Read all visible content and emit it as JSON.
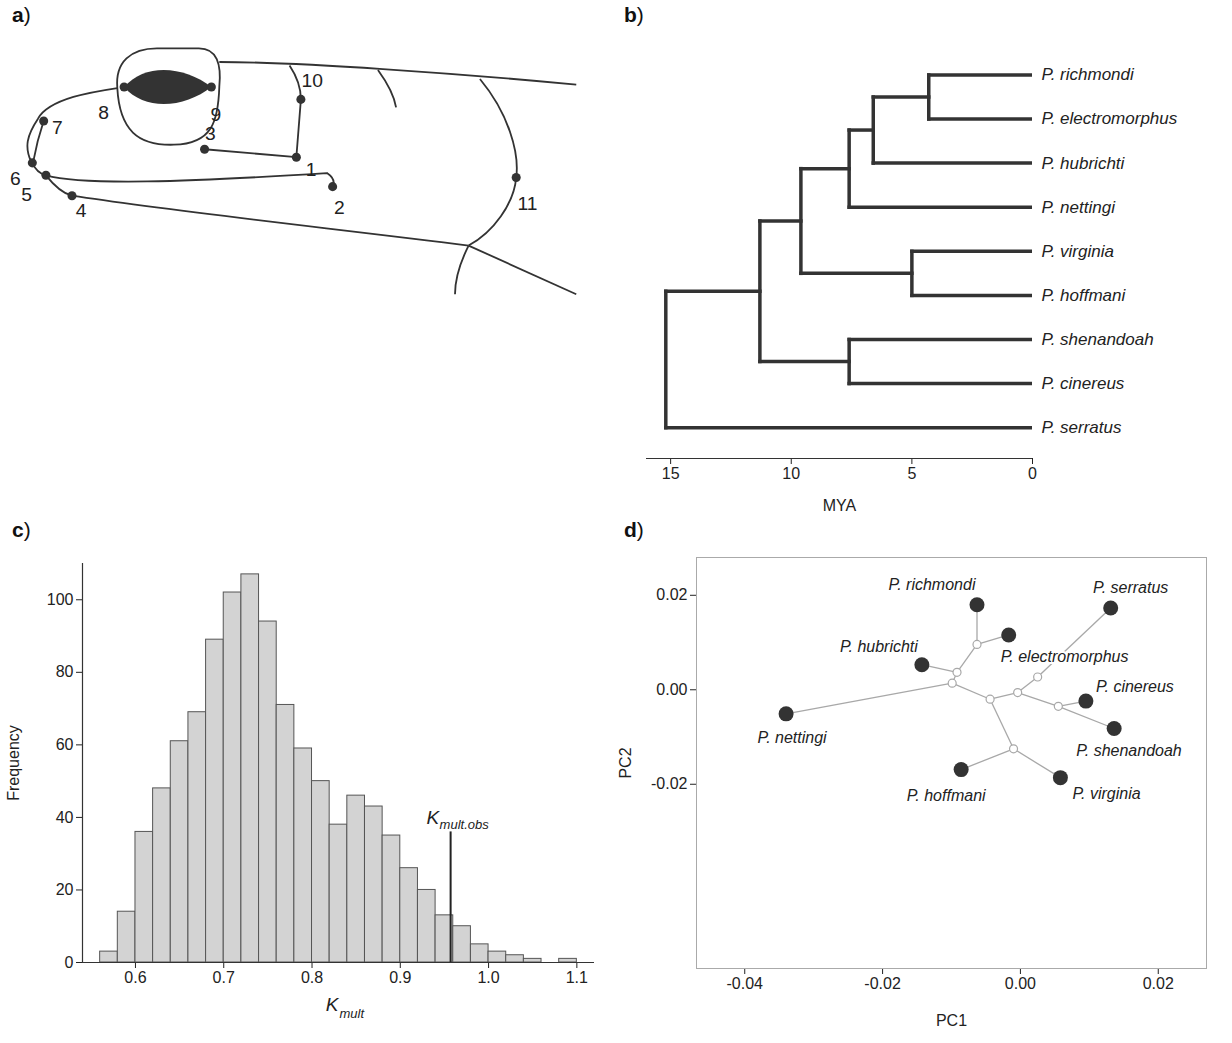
{
  "diagram": {
    "panel": "a)",
    "landmarks": [
      "1",
      "2",
      "3",
      "4",
      "5",
      "6",
      "7",
      "8",
      "9",
      "10",
      "11"
    ]
  },
  "chart_data": [
    {
      "panel": "b)",
      "type": "tree",
      "color": "#333333",
      "xlabel": "MYA",
      "xlim": [
        16,
        0
      ],
      "xticks": [
        15,
        10,
        5,
        0
      ],
      "tree": {
        "age": 15.2,
        "children": [
          {
            "age": 11.3,
            "children": [
              {
                "age": 9.6,
                "children": [
                  {
                    "age": 7.6,
                    "children": [
                      {
                        "age": 6.6,
                        "children": [
                          {
                            "age": 4.3,
                            "children": [
                              {
                                "name": "P. richmondi",
                                "age": 0
                              },
                              {
                                "name": "P. electromorphus",
                                "age": 0
                              }
                            ]
                          },
                          {
                            "name": "P. hubrichti",
                            "age": 0
                          }
                        ]
                      },
                      {
                        "name": "P. nettingi",
                        "age": 0
                      }
                    ]
                  },
                  {
                    "age": 5.0,
                    "children": [
                      {
                        "name": "P. virginia",
                        "age": 0
                      },
                      {
                        "name": "P. hoffmani",
                        "age": 0
                      }
                    ]
                  }
                ]
              },
              {
                "age": 7.6,
                "children": [
                  {
                    "name": "P. shenandoah",
                    "age": 0
                  },
                  {
                    "name": "P. cinereus",
                    "age": 0
                  }
                ]
              }
            ]
          },
          {
            "name": "P. serratus",
            "age": 0
          }
        ]
      }
    },
    {
      "panel": "c)",
      "type": "histogram",
      "color": "#d3d3d3",
      "xlabel": {
        "text": "K",
        "subscript": "mult"
      },
      "ylabel": "Frequency",
      "bins": [
        0.56,
        0.58,
        0.6,
        0.62,
        0.64,
        0.66,
        0.68,
        0.7,
        0.72,
        0.74,
        0.76,
        0.78,
        0.8,
        0.82,
        0.84,
        0.86,
        0.88,
        0.9,
        0.92,
        0.94,
        0.96,
        0.98,
        1.0,
        1.02,
        1.04,
        1.06,
        1.08,
        1.1
      ],
      "counts": [
        3,
        14,
        36,
        48,
        61,
        69,
        89,
        102,
        107,
        94,
        71,
        59,
        50,
        38,
        46,
        43,
        35,
        26,
        20,
        13,
        10,
        5,
        3,
        2,
        1,
        0,
        1
      ],
      "xlim": [
        0.54,
        1.12
      ],
      "ylim": [
        0,
        110
      ],
      "xticks": [
        0.6,
        0.7,
        0.8,
        0.9,
        {
          "value": 1,
          "label": "1.0"
        },
        1.1
      ],
      "yticks": [
        0,
        20,
        40,
        60,
        80,
        100
      ],
      "annotation": {
        "text": "K",
        "subscript": "mult.obs",
        "x": 0.957,
        "y": 36
      }
    },
    {
      "panel": "d)",
      "type": "scatter",
      "color": "#333333",
      "xlabel": "PC1",
      "ylabel": "PC2",
      "xlim": [
        -0.047,
        0.027
      ],
      "ylim": [
        -0.059,
        0.028
      ],
      "xticks": [
        -0.04,
        -0.02,
        {
          "value": 0,
          "label": "0.00"
        },
        0.02
      ],
      "yticks": [
        -0.02,
        {
          "value": 0,
          "label": "0.00"
        },
        0.02
      ],
      "tree": {
        "x": 0.0025,
        "y": 0.0027,
        "children": [
          {
            "x": -0.0004,
            "y": -0.0006,
            "children": [
              {
                "x": -0.0044,
                "y": -0.002,
                "children": [
                  {
                    "x": -0.0099,
                    "y": 0.0014,
                    "children": [
                      {
                        "x": -0.0092,
                        "y": 0.0037,
                        "children": [
                          {
                            "x": -0.0063,
                            "y": 0.0096,
                            "children": [
                              {
                                "name": "P. richmondi",
                                "x": -0.0063,
                                "y": 0.018
                              },
                              {
                                "name": "P. electromorphus",
                                "x": -0.0017,
                                "y": 0.0116
                              }
                            ]
                          },
                          {
                            "name": "P. hubrichti",
                            "x": -0.0143,
                            "y": 0.0053
                          }
                        ]
                      },
                      {
                        "name": "P. nettingi",
                        "x": -0.034,
                        "y": -0.0051
                      }
                    ]
                  },
                  {
                    "x": -0.001,
                    "y": -0.0125,
                    "children": [
                      {
                        "name": "P. virginia",
                        "x": 0.0058,
                        "y": -0.0186
                      },
                      {
                        "name": "P. hoffmani",
                        "x": -0.0086,
                        "y": -0.0169
                      }
                    ]
                  }
                ]
              },
              {
                "x": 0.0055,
                "y": -0.0035,
                "children": [
                  {
                    "name": "P. shenandoah",
                    "x": 0.0136,
                    "y": -0.0082
                  },
                  {
                    "name": "P. cinereus",
                    "x": 0.0095,
                    "y": -0.0024
                  }
                ]
              }
            ]
          },
          {
            "name": "P. serratus",
            "x": 0.0131,
            "y": 0.0173
          }
        ]
      }
    }
  ]
}
